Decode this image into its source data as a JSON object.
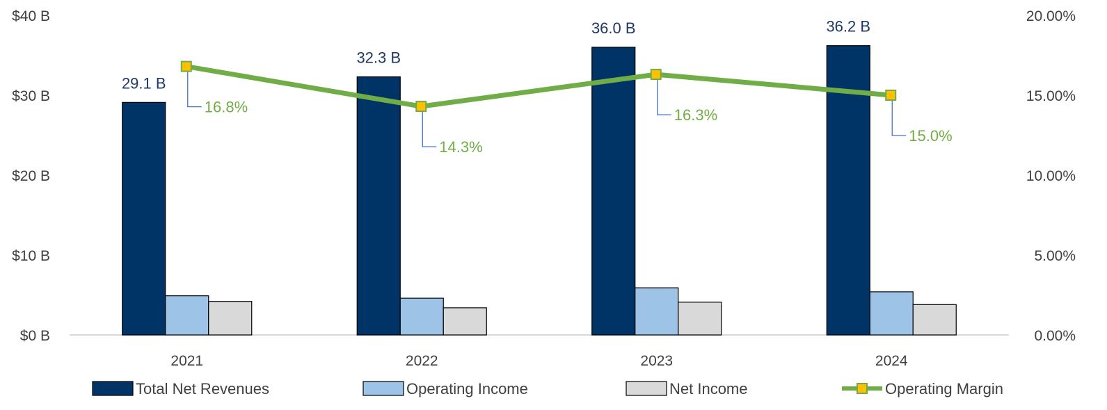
{
  "chart_data": {
    "type": "bar",
    "categories": [
      "2021",
      "2022",
      "2023",
      "2024"
    ],
    "series": [
      {
        "name": "Total Net Revenues",
        "type": "bar",
        "axis": "left",
        "color": "#003366",
        "values": [
          29.1,
          32.3,
          36.0,
          36.2
        ],
        "labels": [
          "29.1 B",
          "32.3 B",
          "36.0 B",
          "36.2 B"
        ]
      },
      {
        "name": "Operating Income",
        "type": "bar",
        "axis": "left",
        "color": "#9DC3E6",
        "values": [
          4.9,
          4.6,
          5.9,
          5.4
        ]
      },
      {
        "name": "Net Income",
        "type": "bar",
        "axis": "left",
        "color": "#D9D9D9",
        "values": [
          4.2,
          3.4,
          4.1,
          3.8
        ]
      },
      {
        "name": "Operating Margin",
        "type": "line",
        "axis": "right",
        "color": "#70AD47",
        "marker_color": "#FFC000",
        "values": [
          16.8,
          14.3,
          16.3,
          15.0
        ],
        "labels": [
          "16.8%",
          "14.3%",
          "16.3%",
          "15.0%"
        ]
      }
    ],
    "y_left": {
      "ylim": [
        0,
        40
      ],
      "ticks": [
        0,
        10,
        20,
        30,
        40
      ],
      "tick_labels": [
        "$0 B",
        "$10 B",
        "$20 B",
        "$30 B",
        "$40 B"
      ]
    },
    "y_right": {
      "ylim": [
        0,
        20
      ],
      "ticks": [
        0,
        5,
        10,
        15,
        20
      ],
      "tick_labels": [
        "0.00%",
        "5.00%",
        "10.00%",
        "15.00%",
        "20.00%"
      ]
    },
    "grid": false,
    "legend_position": "bottom",
    "colors": {
      "bar_label": "#1F3864",
      "margin_label": "#70AD47",
      "leader_line": "#4472C4",
      "axis_line": "#D9D9D9",
      "tick_text": "#404040"
    }
  }
}
